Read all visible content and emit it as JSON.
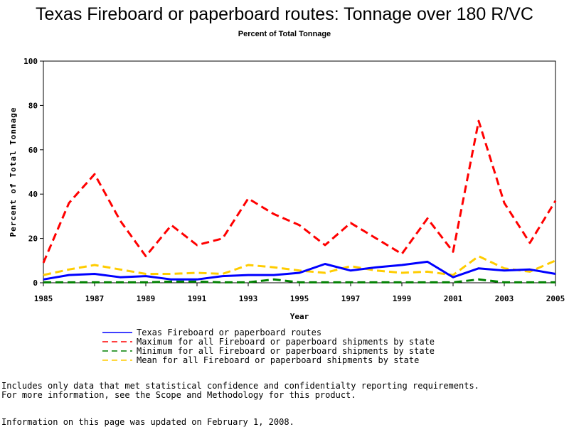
{
  "chart_data": {
    "type": "line",
    "title": "Texas Fireboard or paperboard routes: Tonnage over 180 R/VC",
    "subtitle": "Percent of Total Tonnage",
    "xlabel": "Year",
    "ylabel": "Percent of Total Tonnage",
    "xlim": [
      1985,
      2005
    ],
    "ylim": [
      0,
      100
    ],
    "x_ticks": [
      "1985",
      "1987",
      "1989",
      "1991",
      "1993",
      "1995",
      "1997",
      "1999",
      "2001",
      "2003",
      "2005"
    ],
    "y_ticks": [
      "0",
      "20",
      "40",
      "60",
      "80",
      "100"
    ],
    "grid": false,
    "legend_position": "bottom",
    "x": [
      1985,
      1986,
      1987,
      1988,
      1989,
      1990,
      1991,
      1992,
      1993,
      1994,
      1995,
      1996,
      1997,
      1998,
      1999,
      2000,
      2001,
      2002,
      2003,
      2004,
      2005
    ],
    "series": [
      {
        "name": "Texas Fireboard or paperboard routes",
        "color": "#0000ff",
        "dash": "solid",
        "values": [
          1.5,
          3.5,
          4,
          2.5,
          3,
          1.5,
          1.5,
          3,
          3.5,
          3.5,
          4.5,
          8.5,
          5.5,
          7,
          8,
          9.5,
          2.5,
          6.5,
          5.5,
          6,
          4
        ]
      },
      {
        "name": "Maximum for all Fireboard or paperboard shipments by state",
        "color": "#ff0000",
        "dash": "dashed",
        "values": [
          9,
          36,
          49,
          28,
          12,
          26,
          17,
          20,
          38,
          31,
          26,
          17,
          27,
          20,
          13,
          29,
          14,
          73,
          36,
          18,
          37
        ]
      },
      {
        "name": "Minimum for all Fireboard or paperboard shipments by state",
        "color": "#008000",
        "dash": "dashed",
        "values": [
          0.2,
          0.2,
          0.2,
          0.2,
          0.2,
          0.5,
          0.5,
          0.2,
          0.2,
          1.5,
          0.2,
          0.2,
          0.2,
          0.2,
          0.2,
          0.2,
          0.2,
          1.5,
          0.2,
          0.2,
          0.2
        ]
      },
      {
        "name": "Mean for all Fireboard or paperboard shipments by state",
        "color": "#ffcc00",
        "dash": "dashed",
        "values": [
          3.5,
          6,
          8,
          6,
          4,
          4,
          4.5,
          4,
          8,
          7,
          5.5,
          4.5,
          7.5,
          5.5,
          4.5,
          5,
          3.5,
          12,
          6.5,
          5,
          10
        ]
      }
    ]
  },
  "notes": {
    "line1": "Includes only data that met statistical confidence and confidentialty reporting requirements.",
    "line2": "For more information, see the Scope and Methodology for this product.",
    "updated": "Information on this page was updated on February 1, 2008."
  }
}
